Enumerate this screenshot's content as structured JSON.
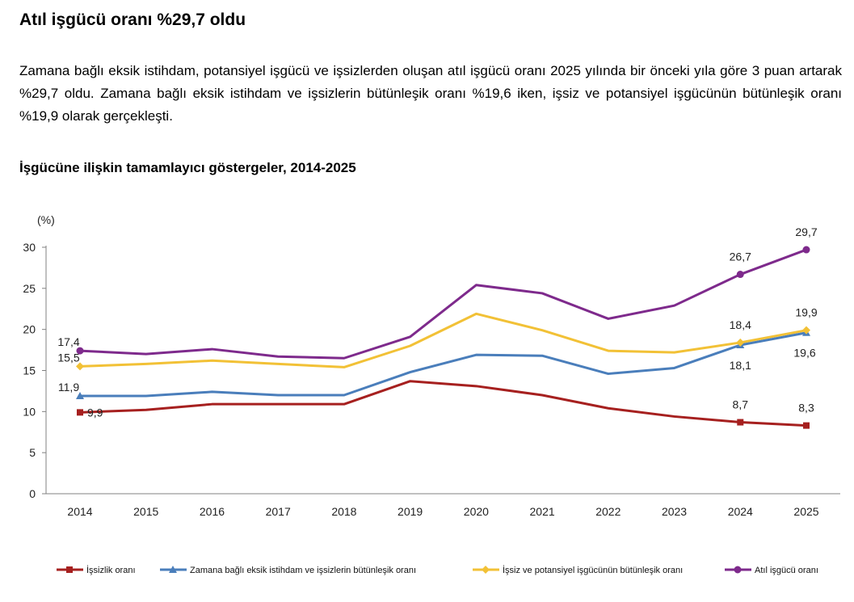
{
  "article": {
    "heading": "Atıl işgücü oranı %29,7 oldu",
    "paragraph": "Zamana bağlı eksik istihdam, potansiyel işgücü ve işsizlerden oluşan atıl işgücü oranı 2025 yılında bir önceki yıla göre 3 puan artarak %29,7 oldu. Zamana bağlı eksik istihdam ve işsizlerin bütünleşik oranı %19,6 iken, işsiz ve potansiyel işgücünün bütünleşik oranı %19,9 olarak gerçekleşti."
  },
  "chart_data": {
    "type": "line",
    "title": "İşgücüne ilişkin tamamlayıcı göstergeler, 2014-2025",
    "ylabel": "(%)",
    "xlabel": "",
    "ylim": [
      0,
      30
    ],
    "yticks": [
      "0",
      "5",
      "10",
      "15",
      "20",
      "25",
      "30"
    ],
    "categories": [
      "2014",
      "2015",
      "2016",
      "2017",
      "2018",
      "2019",
      "2020",
      "2021",
      "2022",
      "2023",
      "2024",
      "2025"
    ],
    "grid": false,
    "legend_position": "bottom",
    "series": [
      {
        "name": "İşsizlik oranı",
        "color": "#A6201F",
        "marker": "square",
        "values": [
          9.9,
          10.2,
          10.9,
          10.9,
          10.9,
          13.7,
          13.1,
          12.0,
          10.4,
          9.4,
          8.7,
          8.3
        ],
        "labels": [
          {
            "index": 0,
            "text": "9,9",
            "pos": "right"
          },
          {
            "index": 10,
            "text": "8,7",
            "pos": "above"
          },
          {
            "index": 11,
            "text": "8,3",
            "pos": "above"
          }
        ]
      },
      {
        "name": "Zamana bağlı eksik istihdam ve işsizlerin bütünleşik oranı",
        "color": "#4A7EBB",
        "marker": "triangle",
        "values": [
          11.9,
          11.9,
          12.4,
          12.0,
          12.0,
          14.8,
          16.9,
          16.8,
          14.6,
          15.3,
          18.1,
          19.6
        ],
        "labels": [
          {
            "index": 0,
            "text": "11,9",
            "pos": "above-left"
          },
          {
            "index": 10,
            "text": "18,1",
            "pos": "below"
          },
          {
            "index": 11,
            "text": "19,6",
            "pos": "below-right"
          }
        ]
      },
      {
        "name": "İşsiz ve potansiyel işgücünün bütünleşik oranı",
        "color": "#F2C136",
        "marker": "diamond",
        "values": [
          15.5,
          15.8,
          16.2,
          15.8,
          15.4,
          18.0,
          21.9,
          19.9,
          17.4,
          17.2,
          18.4,
          19.9
        ],
        "labels": [
          {
            "index": 0,
            "text": "15,5",
            "pos": "above-left"
          },
          {
            "index": 10,
            "text": "18,4",
            "pos": "above"
          },
          {
            "index": 11,
            "text": "19,9",
            "pos": "above"
          }
        ]
      },
      {
        "name": "Atıl işgücü oranı",
        "color": "#7E2A8C",
        "marker": "circle",
        "values": [
          17.4,
          17.0,
          17.6,
          16.7,
          16.5,
          19.1,
          25.4,
          24.4,
          21.3,
          22.9,
          26.7,
          29.7
        ],
        "labels": [
          {
            "index": 0,
            "text": "17,4",
            "pos": "above-left"
          },
          {
            "index": 10,
            "text": "26,7",
            "pos": "above"
          },
          {
            "index": 11,
            "text": "29,7",
            "pos": "above"
          }
        ]
      }
    ]
  }
}
